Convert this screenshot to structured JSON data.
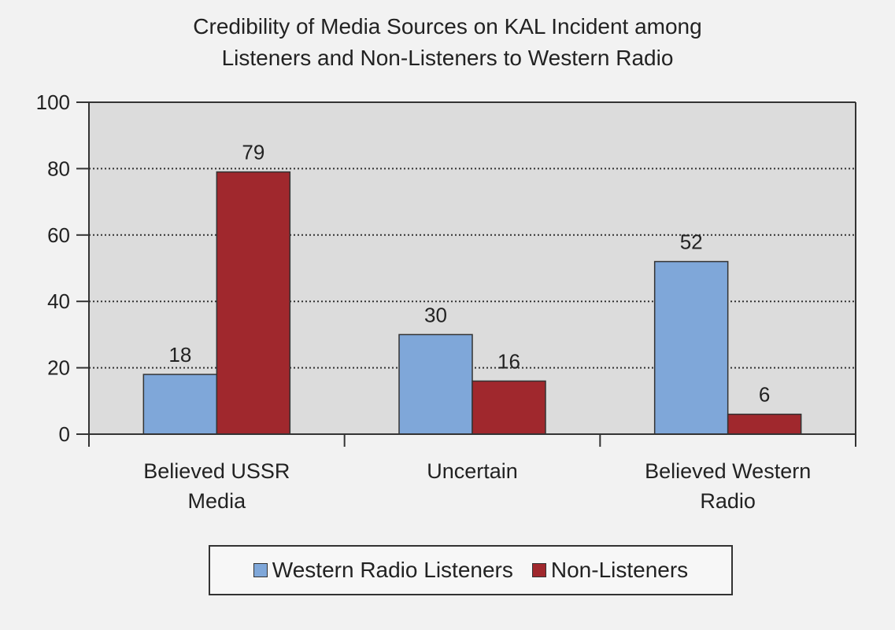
{
  "chart_data": {
    "type": "bar",
    "title_lines": [
      "Credibility of Media Sources on KAL Incident among",
      "Listeners and Non-Listeners to Western Radio"
    ],
    "categories": [
      [
        "Believed USSR",
        "Media"
      ],
      [
        "Uncertain"
      ],
      [
        "Believed Western",
        "Radio"
      ]
    ],
    "series": [
      {
        "name": "Western Radio Listeners",
        "values": [
          18,
          30,
          52
        ],
        "color": "#7fa7d9"
      },
      {
        "name": "Non-Listeners",
        "values": [
          79,
          16,
          6
        ],
        "color": "#a0282d"
      }
    ],
    "ylim": [
      0,
      100
    ],
    "yticks": [
      0,
      20,
      40,
      60,
      80,
      100
    ],
    "xlabel": "",
    "ylabel": "",
    "grid": "dotted horizontal",
    "legend_position": "bottom",
    "plot_background": "#dcdcdc",
    "page_background": "#f2f2f2",
    "data_labels": true
  }
}
